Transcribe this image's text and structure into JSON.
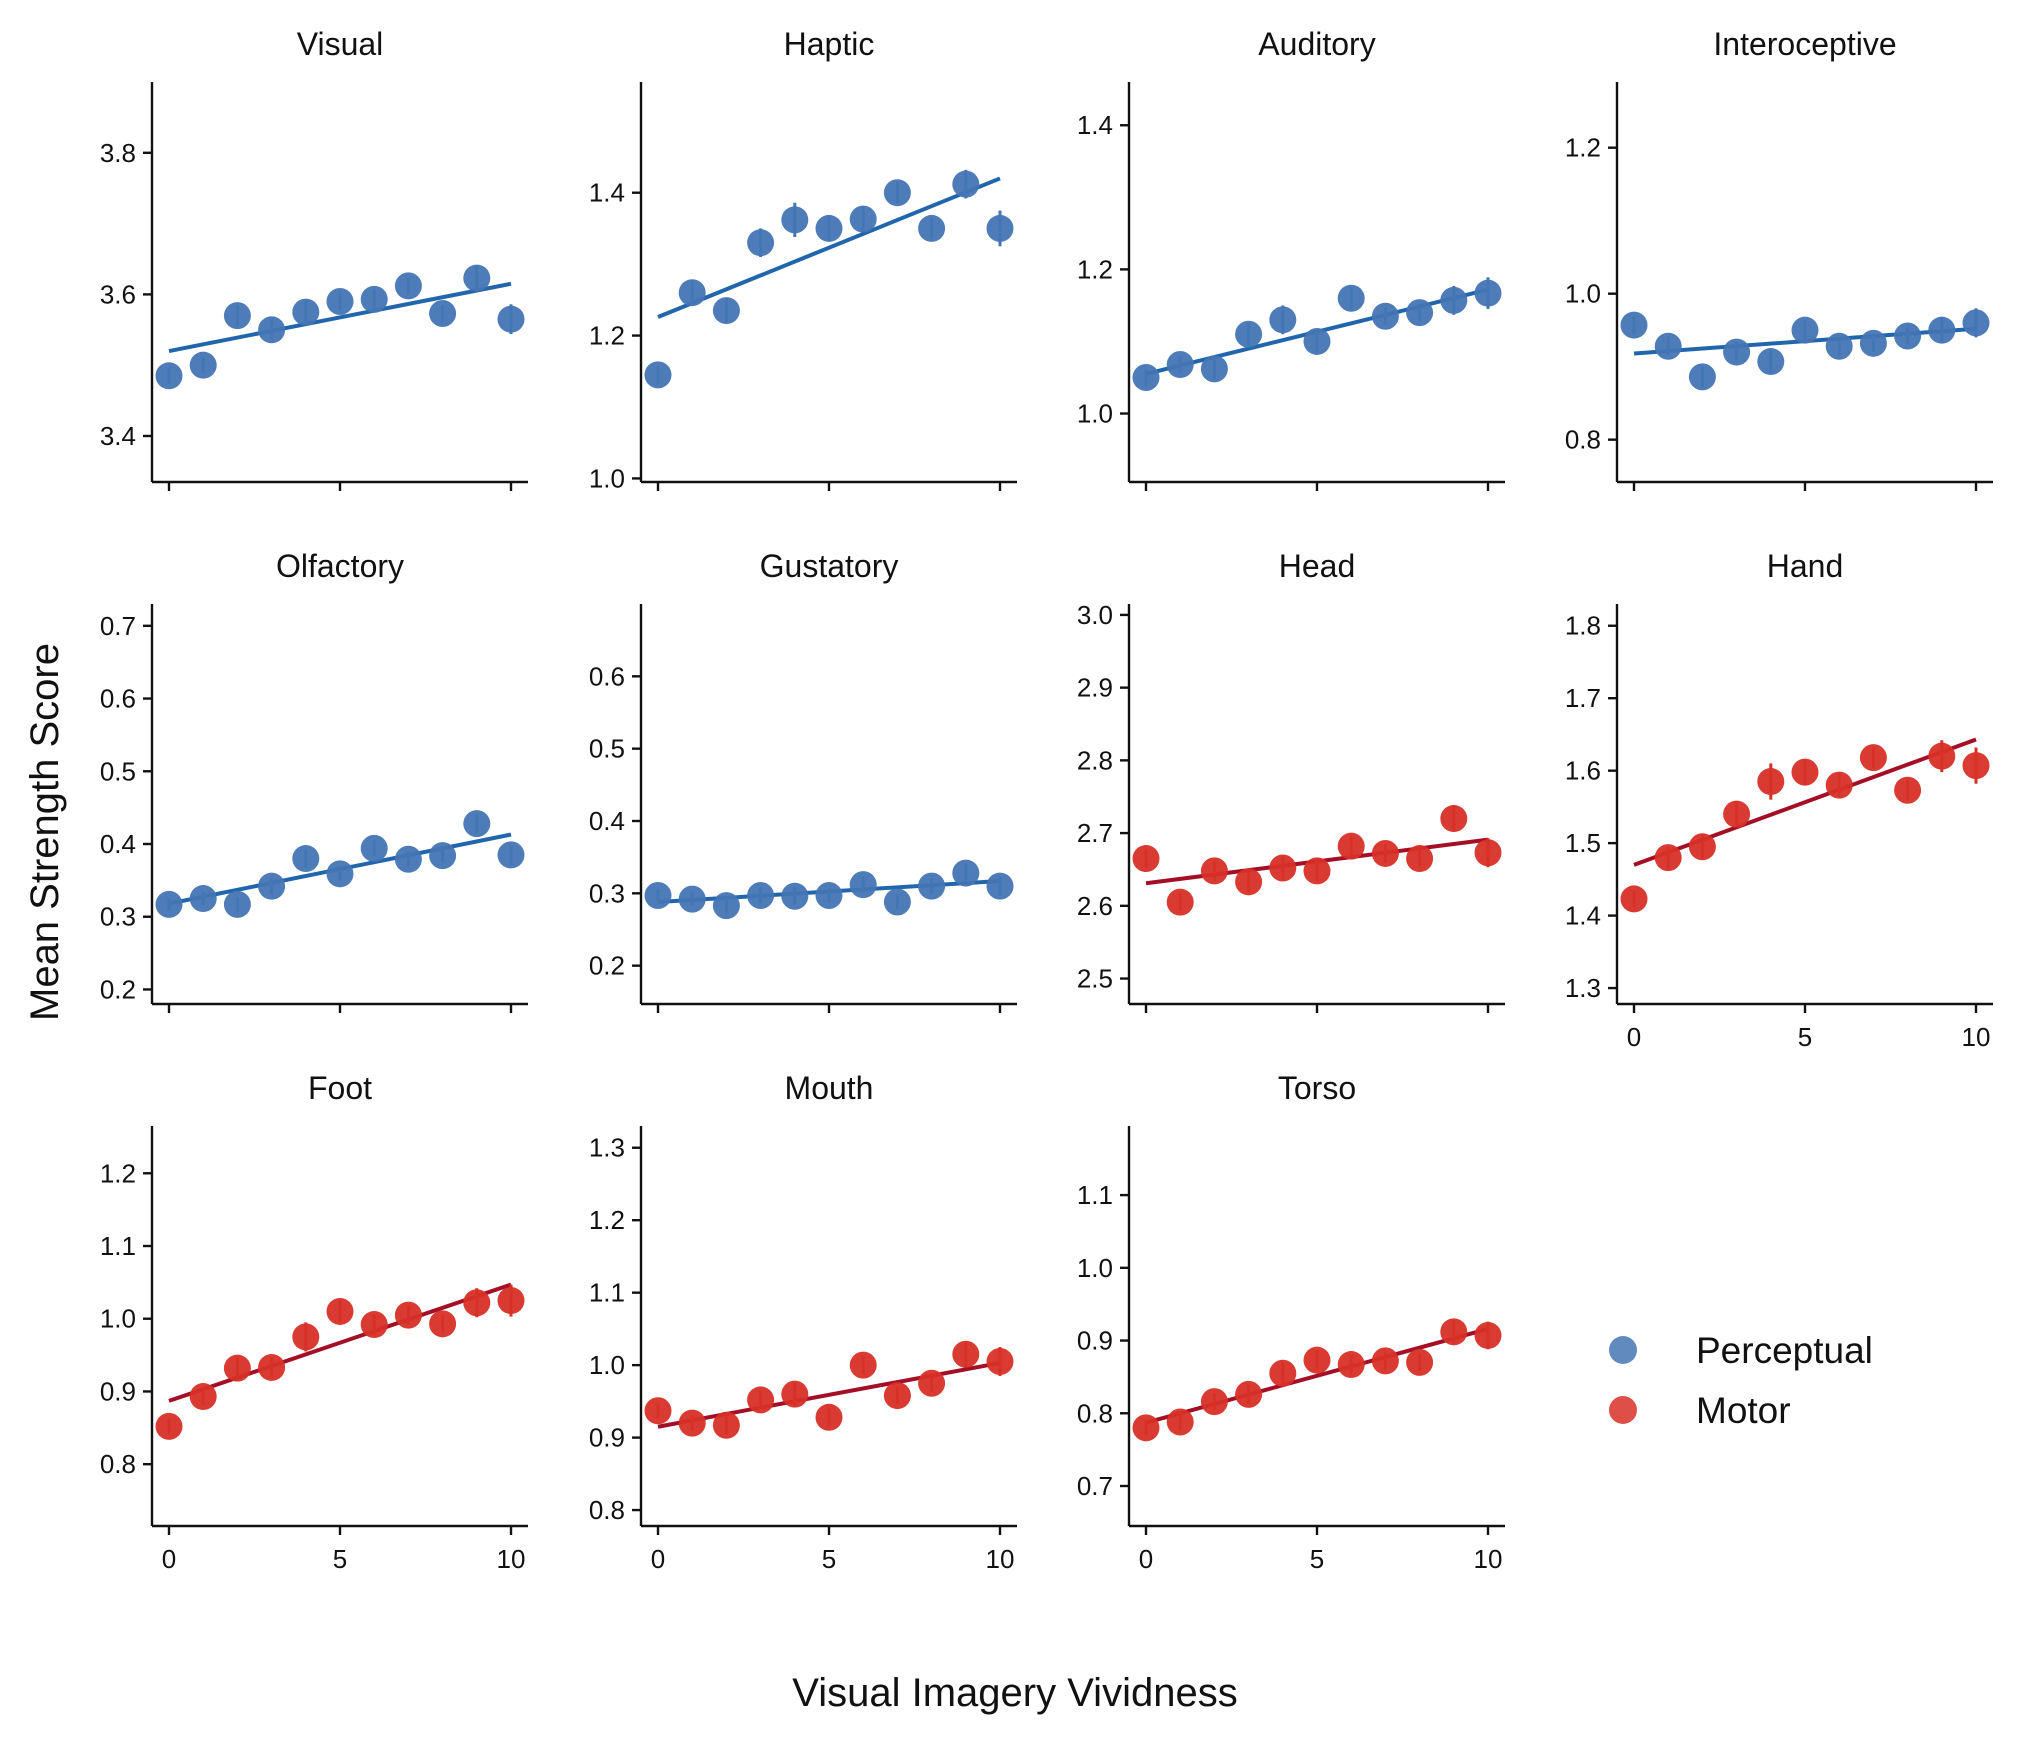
{
  "figure": {
    "xlabel": "Visual Imagery Vividness",
    "ylabel": "Mean Strength Score"
  },
  "legend": {
    "position": "right",
    "items": [
      {
        "label": "Perceptual",
        "color": "#4575b4"
      },
      {
        "label": "Motor",
        "color": "#d73027"
      }
    ]
  },
  "colors": {
    "perceptual_point": "#4575b4",
    "perceptual_line": "#2166ac",
    "motor_point": "#d73027",
    "motor_line": "#a50f26"
  },
  "chart_data": [
    {
      "type": "scatter",
      "title": "Visual",
      "group": "Perceptual",
      "x": [
        0,
        1,
        2,
        3,
        4,
        5,
        6,
        7,
        8,
        9,
        10
      ],
      "y": [
        3.485,
        3.5,
        3.57,
        3.55,
        3.575,
        3.59,
        3.593,
        3.612,
        3.573,
        3.623,
        3.565
      ],
      "err": [
        0.011,
        0.011,
        0.015,
        0.015,
        0.016,
        0.013,
        0.013,
        0.012,
        0.012,
        0.018,
        0.021
      ],
      "fit": [
        3.52,
        3.615
      ],
      "ylim": [
        3.335,
        3.9
      ],
      "yticks": [
        3.4,
        3.6,
        3.8
      ],
      "xticks": [
        0,
        5,
        10
      ],
      "xtick_labels_visible": false
    },
    {
      "type": "scatter",
      "title": "Haptic",
      "group": "Perceptual",
      "x": [
        0,
        1,
        2,
        3,
        4,
        5,
        6,
        7,
        8,
        9,
        10
      ],
      "y": [
        1.145,
        1.26,
        1.235,
        1.33,
        1.362,
        1.35,
        1.363,
        1.4,
        1.35,
        1.412,
        1.35
      ],
      "err": [
        0.012,
        0.017,
        0.017,
        0.02,
        0.024,
        0.018,
        0.018,
        0.015,
        0.015,
        0.02,
        0.025
      ],
      "fit": [
        1.226,
        1.42
      ],
      "ylim": [
        0.995,
        1.555
      ],
      "yticks": [
        1.0,
        1.2,
        1.4
      ],
      "xticks": [
        0,
        5,
        10
      ],
      "xtick_labels_visible": false
    },
    {
      "type": "scatter",
      "title": "Auditory",
      "group": "Perceptual",
      "x": [
        0,
        1,
        2,
        3,
        4,
        5,
        6,
        7,
        8,
        9,
        10
      ],
      "y": [
        1.05,
        1.068,
        1.062,
        1.11,
        1.13,
        1.1,
        1.16,
        1.135,
        1.14,
        1.157,
        1.167
      ],
      "err": [
        0.012,
        0.012,
        0.014,
        0.016,
        0.02,
        0.015,
        0.015,
        0.012,
        0.012,
        0.02,
        0.022
      ],
      "fit": [
        1.055,
        1.172
      ],
      "ylim": [
        0.905,
        1.46
      ],
      "yticks": [
        1.0,
        1.2,
        1.4
      ],
      "xticks": [
        0,
        5,
        10
      ],
      "xtick_labels_visible": false
    },
    {
      "type": "scatter",
      "title": "Interoceptive",
      "group": "Perceptual",
      "x": [
        0,
        1,
        2,
        3,
        4,
        5,
        6,
        7,
        8,
        9,
        10
      ],
      "y": [
        0.957,
        0.928,
        0.886,
        0.92,
        0.907,
        0.95,
        0.928,
        0.932,
        0.942,
        0.95,
        0.96
      ],
      "err": [
        0.012,
        0.013,
        0.014,
        0.014,
        0.016,
        0.014,
        0.013,
        0.012,
        0.012,
        0.018,
        0.02
      ],
      "fit": [
        0.918,
        0.952
      ],
      "ylim": [
        0.742,
        1.29
      ],
      "yticks": [
        0.8,
        1.0,
        1.2
      ],
      "xticks": [
        0,
        5,
        10
      ],
      "xtick_labels_visible": false
    },
    {
      "type": "scatter",
      "title": "Olfactory",
      "group": "Perceptual",
      "x": [
        0,
        1,
        2,
        3,
        4,
        5,
        6,
        7,
        8,
        9,
        10
      ],
      "y": [
        0.317,
        0.325,
        0.317,
        0.342,
        0.38,
        0.359,
        0.394,
        0.379,
        0.384,
        0.428,
        0.385
      ],
      "err": [
        0.008,
        0.009,
        0.01,
        0.011,
        0.012,
        0.01,
        0.011,
        0.01,
        0.009,
        0.013,
        0.014
      ],
      "fit": [
        0.318,
        0.413
      ],
      "ylim": [
        0.18,
        0.73
      ],
      "yticks": [
        0.2,
        0.3,
        0.4,
        0.5,
        0.6,
        0.7
      ],
      "xticks": [
        0,
        5,
        10
      ],
      "xtick_labels_visible": false
    },
    {
      "type": "scatter",
      "title": "Gustatory",
      "group": "Perceptual",
      "x": [
        0,
        1,
        2,
        3,
        4,
        5,
        6,
        7,
        8,
        9,
        10
      ],
      "y": [
        0.297,
        0.292,
        0.283,
        0.297,
        0.296,
        0.297,
        0.312,
        0.288,
        0.31,
        0.328,
        0.31
      ],
      "err": [
        0.009,
        0.009,
        0.01,
        0.011,
        0.012,
        0.01,
        0.011,
        0.01,
        0.01,
        0.013,
        0.014
      ],
      "fit": [
        0.288,
        0.317
      ],
      "ylim": [
        0.147,
        0.7
      ],
      "yticks": [
        0.2,
        0.3,
        0.4,
        0.5,
        0.6
      ],
      "xticks": [
        0,
        5,
        10
      ],
      "xtick_labels_visible": false
    },
    {
      "type": "scatter",
      "title": "Head",
      "group": "Motor",
      "x": [
        0,
        1,
        2,
        3,
        4,
        5,
        6,
        7,
        8,
        9,
        10
      ],
      "y": [
        2.665,
        2.605,
        2.648,
        2.633,
        2.652,
        2.648,
        2.682,
        2.672,
        2.665,
        2.72,
        2.673
      ],
      "err": [
        0.012,
        0.012,
        0.014,
        0.014,
        0.016,
        0.014,
        0.014,
        0.013,
        0.012,
        0.018,
        0.02
      ],
      "fit": [
        2.631,
        2.691
      ],
      "ylim": [
        2.465,
        3.015
      ],
      "yticks": [
        2.5,
        2.6,
        2.7,
        2.8,
        2.9,
        3.0
      ],
      "xticks": [
        0,
        5,
        10
      ],
      "xtick_labels_visible": false
    },
    {
      "type": "scatter",
      "title": "Hand",
      "group": "Motor",
      "x": [
        0,
        1,
        2,
        3,
        4,
        5,
        6,
        7,
        8,
        9,
        10
      ],
      "y": [
        1.423,
        1.48,
        1.495,
        1.54,
        1.585,
        1.598,
        1.58,
        1.618,
        1.573,
        1.62,
        1.607
      ],
      "err": [
        0.012,
        0.015,
        0.017,
        0.018,
        0.025,
        0.018,
        0.016,
        0.015,
        0.014,
        0.022,
        0.025
      ],
      "fit": [
        1.47,
        1.643
      ],
      "ylim": [
        1.278,
        1.83
      ],
      "yticks": [
        1.3,
        1.4,
        1.5,
        1.6,
        1.7,
        1.8
      ],
      "xticks": [
        0,
        5,
        10
      ],
      "xtick_labels_visible": true
    },
    {
      "type": "scatter",
      "title": "Foot",
      "group": "Motor",
      "x": [
        0,
        1,
        2,
        3,
        4,
        5,
        6,
        7,
        8,
        9,
        10
      ],
      "y": [
        0.852,
        0.893,
        0.932,
        0.933,
        0.975,
        1.01,
        0.992,
        1.005,
        0.993,
        1.022,
        1.025
      ],
      "err": [
        0.01,
        0.012,
        0.014,
        0.014,
        0.02,
        0.015,
        0.014,
        0.013,
        0.012,
        0.02,
        0.022
      ],
      "fit": [
        0.887,
        1.047
      ],
      "ylim": [
        0.715,
        1.265
      ],
      "yticks": [
        0.8,
        0.9,
        1.0,
        1.1,
        1.2
      ],
      "xticks": [
        0,
        5,
        10
      ],
      "xtick_labels_visible": true
    },
    {
      "type": "scatter",
      "title": "Mouth",
      "group": "Motor",
      "x": [
        0,
        1,
        2,
        3,
        4,
        5,
        6,
        7,
        8,
        9,
        10
      ],
      "y": [
        0.937,
        0.92,
        0.917,
        0.952,
        0.96,
        0.928,
        1.0,
        0.958,
        0.975,
        1.015,
        1.005
      ],
      "err": [
        0.01,
        0.011,
        0.012,
        0.013,
        0.017,
        0.013,
        0.013,
        0.012,
        0.012,
        0.018,
        0.02
      ],
      "fit": [
        0.915,
        1.003
      ],
      "ylim": [
        0.778,
        1.33
      ],
      "yticks": [
        0.8,
        0.9,
        1.0,
        1.1,
        1.2,
        1.3
      ],
      "xticks": [
        0,
        5,
        10
      ],
      "xtick_labels_visible": true
    },
    {
      "type": "scatter",
      "title": "Torso",
      "group": "Motor",
      "x": [
        0,
        1,
        2,
        3,
        4,
        5,
        6,
        7,
        8,
        9,
        10
      ],
      "y": [
        0.78,
        0.788,
        0.816,
        0.826,
        0.855,
        0.873,
        0.867,
        0.872,
        0.87,
        0.912,
        0.907
      ],
      "err": [
        0.01,
        0.011,
        0.012,
        0.013,
        0.016,
        0.013,
        0.013,
        0.012,
        0.012,
        0.017,
        0.019
      ],
      "fit": [
        0.787,
        0.916
      ],
      "ylim": [
        0.645,
        1.195
      ],
      "yticks": [
        0.7,
        0.8,
        0.9,
        1.0,
        1.1
      ],
      "xticks": [
        0,
        5,
        10
      ],
      "xtick_labels_visible": true
    }
  ]
}
